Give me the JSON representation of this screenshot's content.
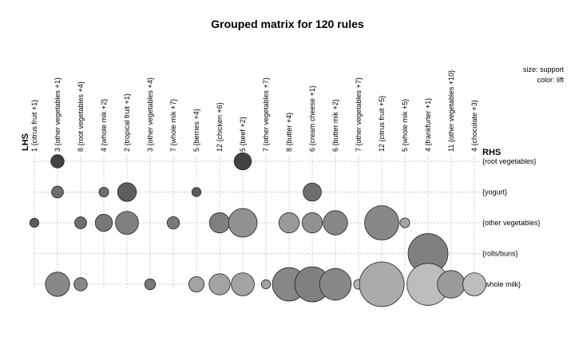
{
  "chart_data": {
    "type": "scatter",
    "title": "Grouped matrix for 120 rules",
    "legend": {
      "size_text": "size: support",
      "color_text": "color: lift",
      "placement": "top-right"
    },
    "lhs_title": "LHS",
    "rhs_title": "RHS",
    "columns": [
      "1 {citrus fruit +1}",
      "3 {other vegetables +1}",
      "8 {root vegetables +4}",
      "4 {whole mik +2}",
      "2 {tropical fruit +1}",
      "3 {other vegetables +4}",
      "7 {whole mik +7}",
      "5 {berries +4}",
      "12 {chicken +6}",
      "5 {beef +2}",
      "7 {other vegetables +7}",
      "8 {butter +4}",
      "6 {cream cheese  +1}",
      "6 {butter mik +2}",
      "7 {other vegetables +7}",
      "12 {citrus fruit +5}",
      "5 {whole mik +5}",
      "4 {frankfurter +1}",
      "11 {other vegetables +10}",
      "4 {chocolate +3}"
    ],
    "rows": [
      "{root vegetables}",
      "{yogurt}",
      "{other vegetables}",
      "{rolls/buns}",
      "{whole milk}"
    ],
    "points": [
      {
        "col": 1,
        "row": 0,
        "support": 0.15,
        "lift": 0.85
      },
      {
        "col": 9,
        "row": 0,
        "support": 0.25,
        "lift": 0.85
      },
      {
        "col": 1,
        "row": 1,
        "support": 0.12,
        "lift": 0.6
      },
      {
        "col": 3,
        "row": 1,
        "support": 0.08,
        "lift": 0.6
      },
      {
        "col": 4,
        "row": 1,
        "support": 0.3,
        "lift": 0.7
      },
      {
        "col": 7,
        "row": 1,
        "support": 0.07,
        "lift": 0.7
      },
      {
        "col": 12,
        "row": 1,
        "support": 0.28,
        "lift": 0.6
      },
      {
        "col": 0,
        "row": 2,
        "support": 0.07,
        "lift": 0.7
      },
      {
        "col": 2,
        "row": 2,
        "support": 0.12,
        "lift": 0.6
      },
      {
        "col": 3,
        "row": 2,
        "support": 0.25,
        "lift": 0.55
      },
      {
        "col": 4,
        "row": 2,
        "support": 0.45,
        "lift": 0.5
      },
      {
        "col": 6,
        "row": 2,
        "support": 0.13,
        "lift": 0.55
      },
      {
        "col": 8,
        "row": 2,
        "support": 0.35,
        "lift": 0.5
      },
      {
        "col": 9,
        "row": 2,
        "support": 0.7,
        "lift": 0.4
      },
      {
        "col": 11,
        "row": 2,
        "support": 0.35,
        "lift": 0.35
      },
      {
        "col": 12,
        "row": 2,
        "support": 0.35,
        "lift": 0.4
      },
      {
        "col": 13,
        "row": 2,
        "support": 0.5,
        "lift": 0.45
      },
      {
        "col": 15,
        "row": 2,
        "support": 1.0,
        "lift": 0.45
      },
      {
        "col": 16,
        "row": 2,
        "support": 0.08,
        "lift": 0.3
      },
      {
        "col": 17,
        "row": 3,
        "support": 1.35,
        "lift": 0.5
      },
      {
        "col": 1,
        "row": 4,
        "support": 0.5,
        "lift": 0.45
      },
      {
        "col": 2,
        "row": 4,
        "support": 0.15,
        "lift": 0.45
      },
      {
        "col": 5,
        "row": 4,
        "support": 0.1,
        "lift": 0.55
      },
      {
        "col": 7,
        "row": 4,
        "support": 0.2,
        "lift": 0.3
      },
      {
        "col": 8,
        "row": 4,
        "support": 0.38,
        "lift": 0.3
      },
      {
        "col": 9,
        "row": 4,
        "support": 0.45,
        "lift": 0.3
      },
      {
        "col": 10,
        "row": 4,
        "support": 0.07,
        "lift": 0.3
      },
      {
        "col": 11,
        "row": 4,
        "support": 0.95,
        "lift": 0.45
      },
      {
        "col": 12,
        "row": 4,
        "support": 1.05,
        "lift": 0.5
      },
      {
        "col": 13,
        "row": 4,
        "support": 0.85,
        "lift": 0.45
      },
      {
        "col": 14,
        "row": 4,
        "support": 0.08,
        "lift": 0.2
      },
      {
        "col": 15,
        "row": 4,
        "support": 1.7,
        "lift": 0.25
      },
      {
        "col": 17,
        "row": 4,
        "support": 1.5,
        "lift": 0.15
      },
      {
        "col": 18,
        "row": 4,
        "support": 0.65,
        "lift": 0.35
      },
      {
        "col": 19,
        "row": 4,
        "support": 0.45,
        "lift": 0.15
      }
    ],
    "grid": true
  }
}
